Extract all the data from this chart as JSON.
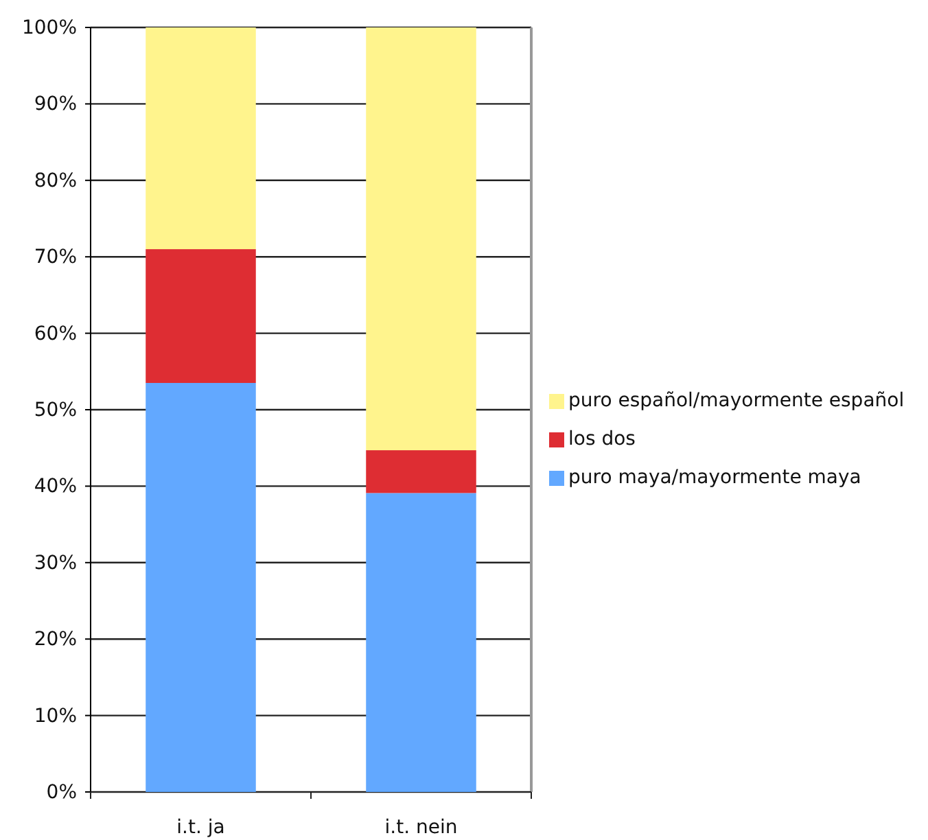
{
  "chart_data": {
    "type": "bar",
    "stacked": true,
    "categories": [
      "i.t. ja",
      "i.t. nein"
    ],
    "series": [
      {
        "name": "puro maya/mayormente maya",
        "color": "#62a8ff",
        "values": [
          53.5,
          39.1
        ]
      },
      {
        "name": "los dos",
        "color": "#de2d33",
        "values": [
          17.5,
          5.6
        ]
      },
      {
        "name": "puro español/mayormente español",
        "color": "#fff48d",
        "values": [
          29,
          55.3
        ]
      }
    ],
    "ylim": [
      0,
      100
    ],
    "yticks": [
      {
        "value": 0,
        "label": "0%"
      },
      {
        "value": 10,
        "label": "10%"
      },
      {
        "value": 20,
        "label": "20%"
      },
      {
        "value": 30,
        "label": "30%"
      },
      {
        "value": 40,
        "label": "40%"
      },
      {
        "value": 50,
        "label": "50%"
      },
      {
        "value": 60,
        "label": "60%"
      },
      {
        "value": 70,
        "label": "70%"
      },
      {
        "value": 80,
        "label": "80%"
      },
      {
        "value": 90,
        "label": "90%"
      },
      {
        "value": 100,
        "label": "100%"
      }
    ],
    "grid": "y",
    "legend": "right"
  }
}
